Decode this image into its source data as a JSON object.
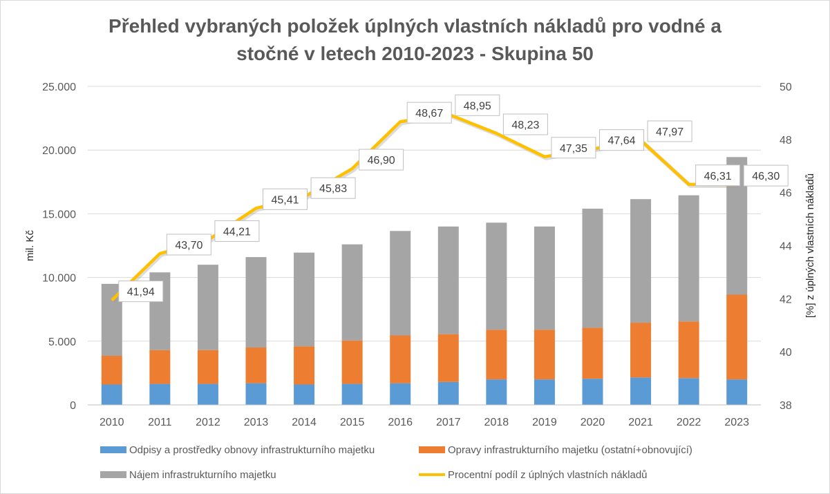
{
  "chart_data": {
    "type": "bar",
    "title_line1": "Přehled vybraných položek úplných vlastních nákladů pro vodné a",
    "title_line2": "stočné v letech 2010-2023 - Skupina 50",
    "ylabel": "mil. Kč",
    "y2label": "[%] z úplných vlastních nákladů",
    "ylim": [
      0,
      25000
    ],
    "y2lim": [
      38,
      50
    ],
    "ytick_labels": [
      "0",
      "5.000",
      "10.000",
      "15.000",
      "20.000",
      "25.000"
    ],
    "y2tick_labels": [
      "38",
      "40",
      "42",
      "44",
      "46",
      "48",
      "50"
    ],
    "categories": [
      "2010",
      "2011",
      "2012",
      "2013",
      "2014",
      "2015",
      "2016",
      "2017",
      "2018",
      "2019",
      "2020",
      "2021",
      "2022",
      "2023"
    ],
    "stacked": true,
    "series": [
      {
        "name": "Odpisy a prostředky obnovy infrastrukturního majetku",
        "color": "#5b9bd5",
        "values": [
          1600,
          1650,
          1650,
          1700,
          1600,
          1650,
          1700,
          1800,
          2000,
          2000,
          2050,
          2150,
          2100,
          2000
        ]
      },
      {
        "name": "Opravy infrastrukturního majetku (ostatní+obnovující)",
        "color": "#ed7d31",
        "values": [
          2250,
          2650,
          2650,
          2800,
          3000,
          3400,
          3750,
          3750,
          3900,
          3900,
          4000,
          4300,
          4450,
          6650
        ]
      },
      {
        "name": "Nájem infrastrukturního majetku",
        "color": "#a5a5a5",
        "values": [
          5650,
          6100,
          6700,
          7100,
          7350,
          7550,
          8200,
          8450,
          8400,
          8100,
          9350,
          9700,
          9900,
          10800
        ]
      }
    ],
    "line_series": {
      "name": "Procentní podíl z úplných vlastních nákladů",
      "color": "#ffc000",
      "axis": "right",
      "values": [
        41.94,
        43.7,
        44.21,
        45.41,
        45.83,
        46.9,
        48.67,
        48.95,
        48.23,
        47.35,
        47.64,
        47.97,
        46.31,
        46.3
      ],
      "labels": [
        "41,94",
        "43,70",
        "44,21",
        "45,41",
        "45,83",
        "46,90",
        "48,67",
        "48,95",
        "48,23",
        "47,35",
        "47,64",
        "47,97",
        "46,31",
        "46,30"
      ]
    },
    "grid": true,
    "legend_position": "bottom"
  }
}
